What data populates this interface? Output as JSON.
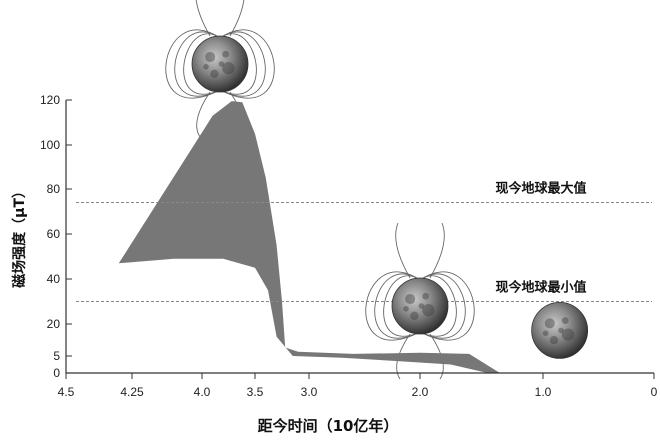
{
  "chart_data": {
    "type": "area",
    "title": "",
    "xlabel": "距今时间（10亿年）",
    "ylabel": "磁场强度（μT）",
    "x_reversed": true,
    "xlim": [
      4.5,
      0
    ],
    "ylim": [
      0,
      120
    ],
    "x_ticks": [
      {
        "value": 4.5,
        "label": "4.5"
      },
      {
        "value": 4.25,
        "label": "4.25"
      },
      {
        "value": 4.0,
        "label": "4.0"
      },
      {
        "value": 3.5,
        "label": "3.5"
      },
      {
        "value": 3.0,
        "label": "3.0"
      },
      {
        "value": 2.0,
        "label": "2.0"
      },
      {
        "value": 1.0,
        "label": "1.0"
      },
      {
        "value": 0,
        "label": "0"
      }
    ],
    "y_ticks": [
      {
        "value": 0,
        "label": "0"
      },
      {
        "value": 5,
        "label": "5"
      },
      {
        "value": 20,
        "label": "20"
      },
      {
        "value": 40,
        "label": "40"
      },
      {
        "value": 60,
        "label": "60"
      },
      {
        "value": 80,
        "label": "80"
      },
      {
        "value": 100,
        "label": "100"
      },
      {
        "value": 120,
        "label": "120"
      }
    ],
    "band": {
      "upper": [
        {
          "x": 4.3,
          "y": 47
        },
        {
          "x": 3.9,
          "y": 113
        },
        {
          "x": 3.72,
          "y": 119.5
        },
        {
          "x": 3.62,
          "y": 119
        },
        {
          "x": 3.5,
          "y": 105
        },
        {
          "x": 3.4,
          "y": 85
        },
        {
          "x": 3.3,
          "y": 55
        },
        {
          "x": 3.25,
          "y": 30
        },
        {
          "x": 3.22,
          "y": 9
        },
        {
          "x": 3.1,
          "y": 7
        },
        {
          "x": 2.6,
          "y": 6
        },
        {
          "x": 2.0,
          "y": 6.5
        },
        {
          "x": 1.6,
          "y": 6
        },
        {
          "x": 1.35,
          "y": 0
        }
      ],
      "lower": [
        {
          "x": 1.45,
          "y": 0
        },
        {
          "x": 1.75,
          "y": 2.5
        },
        {
          "x": 2.2,
          "y": 3.5
        },
        {
          "x": 2.7,
          "y": 4.5
        },
        {
          "x": 3.15,
          "y": 5
        },
        {
          "x": 3.3,
          "y": 14
        },
        {
          "x": 3.38,
          "y": 35
        },
        {
          "x": 3.5,
          "y": 45
        },
        {
          "x": 3.8,
          "y": 49
        },
        {
          "x": 4.1,
          "y": 49
        },
        {
          "x": 4.3,
          "y": 47
        }
      ],
      "color": "#777777"
    },
    "reference_lines": [
      {
        "label": "现今地球最大值",
        "y": 74
      },
      {
        "label": "现今地球最小值",
        "y": 30
      }
    ],
    "moons": [
      {
        "name": "moon-strong-field",
        "x": 3.83,
        "y": 136,
        "field_lines": true
      },
      {
        "name": "moon-weak-field",
        "x": 2.0,
        "y": 28,
        "field_lines": true
      },
      {
        "name": "moon-no-field",
        "x": 0.85,
        "y": 17,
        "field_lines": false
      }
    ],
    "grid": false,
    "colors": {
      "axis": "#333333",
      "reference": "#888888",
      "field_line": "#666666",
      "moon": "#5a5a5a"
    }
  }
}
